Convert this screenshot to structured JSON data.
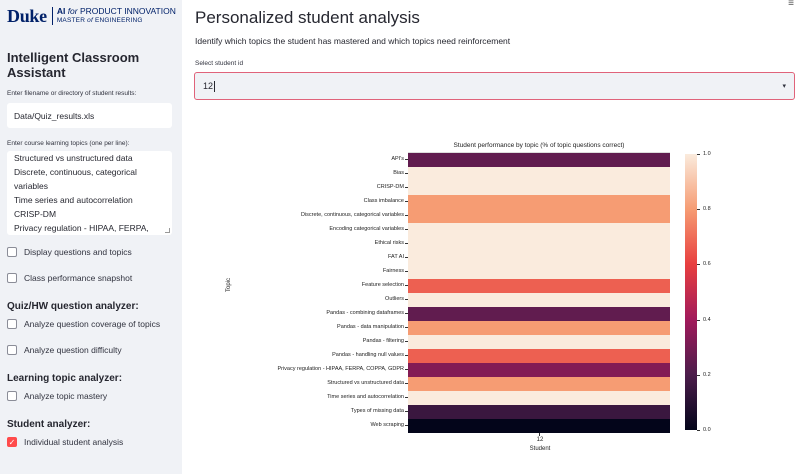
{
  "logo": {
    "brand": "Duke",
    "line1_prefix": "AI",
    "line1_italic": "for",
    "line1_rest": "PRODUCT INNOVATION",
    "line2_prefix": "MASTER",
    "line2_italic": "of",
    "line2_rest": "ENGINEERING"
  },
  "sidebar": {
    "title": "Intelligent Classroom Assistant",
    "file_label": "Enter filename or directory of student results:",
    "file_value": "Data/Quiz_results.xls",
    "topics_label": "Enter course learning topics (one per line):",
    "topics_lines": [
      "Structured vs unstructured data",
      "Discrete, continuous, categorical",
      "variables",
      "Time series and autocorrelation",
      "CRISP-DM",
      "Privacy regulation - HIPAA, FERPA,"
    ],
    "checkbox_display_questions": "Display questions and topics",
    "checkbox_class_snapshot": "Class performance snapshot",
    "section_quiz": "Quiz/HW question analyzer:",
    "checkbox_coverage": "Analyze question coverage of topics",
    "checkbox_difficulty": "Analyze question difficulty",
    "section_topic": "Learning topic analyzer:",
    "checkbox_topic_mastery": "Analyze topic mastery",
    "section_student": "Student analyzer:",
    "checkbox_individual": "Individual student analysis"
  },
  "main": {
    "title": "Personalized student analysis",
    "subtitle": "Identify which topics the student has mastered and which topics need reinforcement",
    "select_label": "Select student id",
    "select_value": "12",
    "caret_icon": "▾",
    "menu_icon": "≡"
  },
  "chart_data": {
    "type": "heatmap",
    "title": "Student performance by topic (% of topic questions correct)",
    "xlabel": "Student",
    "ylabel": "Topic",
    "x": [
      "12"
    ],
    "colorbar_ticks": [
      "1.0",
      "0.8",
      "0.6",
      "0.4",
      "0.2",
      "0.0"
    ],
    "colorbar_range": [
      0,
      1
    ],
    "colormap": "rocket",
    "rows": [
      {
        "topic": "API's",
        "value": 0.25
      },
      {
        "topic": "Bias",
        "value": 1.0
      },
      {
        "topic": "CRISP-DM",
        "value": 1.0
      },
      {
        "topic": "Class imbalance",
        "value": 0.8
      },
      {
        "topic": "Discrete, continuous, categorical variables",
        "value": 0.8
      },
      {
        "topic": "Encoding categorical variables",
        "value": 1.0
      },
      {
        "topic": "Ethical risks",
        "value": 1.0
      },
      {
        "topic": "FAT AI",
        "value": 1.0
      },
      {
        "topic": "Fairness",
        "value": 1.0
      },
      {
        "topic": "Feature selection",
        "value": 0.67
      },
      {
        "topic": "Outliers",
        "value": 1.0
      },
      {
        "topic": "Pandas - combining dataframes",
        "value": 0.25
      },
      {
        "topic": "Pandas - data manipulation",
        "value": 0.8
      },
      {
        "topic": "Pandas - filtering",
        "value": 1.0
      },
      {
        "topic": "Pandas - handling null values",
        "value": 0.67
      },
      {
        "topic": "Privacy regulation - HIPAA, FERPA, COPPA, GDPR",
        "value": 0.33
      },
      {
        "topic": "Structured vs unstructured data",
        "value": 0.8
      },
      {
        "topic": "Time series and autocorrelation",
        "value": 1.0
      },
      {
        "topic": "Types of missing data",
        "value": 0.15
      },
      {
        "topic": "Web scraping",
        "value": 0.0
      }
    ]
  }
}
